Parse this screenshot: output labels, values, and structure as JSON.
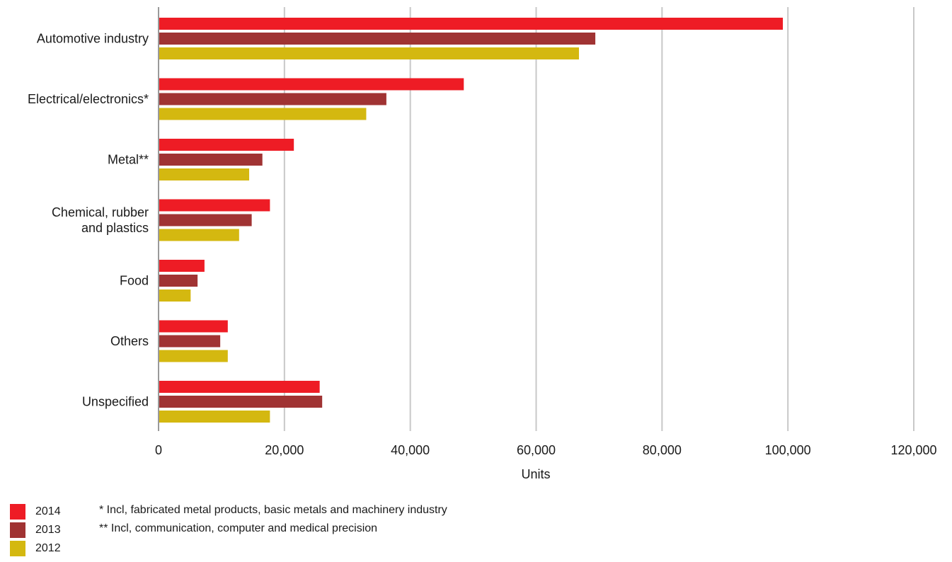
{
  "chart_data": {
    "type": "bar",
    "orientation": "horizontal",
    "categories": [
      "Automotive industry",
      "Electrical/electronics*",
      "Metal**",
      "Chemical, rubber\nand plastics",
      "Food",
      "Others",
      "Unspecified"
    ],
    "series": [
      {
        "name": "2014",
        "color": "#ee1c25",
        "values": [
          99200,
          48500,
          21500,
          17700,
          7300,
          11000,
          25600
        ]
      },
      {
        "name": "2013",
        "color": "#a03333",
        "values": [
          69400,
          36200,
          16500,
          14800,
          6200,
          9800,
          26000
        ]
      },
      {
        "name": "2012",
        "color": "#d4b810",
        "values": [
          66800,
          33000,
          14400,
          12800,
          5100,
          11000,
          17700
        ]
      }
    ],
    "xlabel": "Units",
    "xlim": [
      0,
      120000
    ],
    "xticks": [
      0,
      20000,
      40000,
      60000,
      80000,
      100000,
      120000
    ],
    "xtick_labels": [
      "0",
      "20,000",
      "40,000",
      "60,000",
      "80,000",
      "100,000",
      "120,000"
    ],
    "grid": "vertical",
    "legend_position": "bottom-left"
  },
  "notes": [
    "* Incl, fabricated metal products, basic metals and machinery industry",
    "** Incl, communication, computer and medical precision"
  ]
}
